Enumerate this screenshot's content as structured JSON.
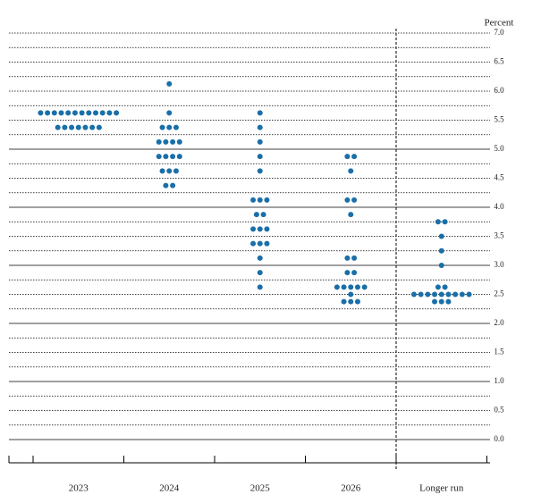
{
  "chart_data": {
    "type": "dot",
    "y_label": "Percent",
    "categories": [
      "2023",
      "2024",
      "2025",
      "2026",
      "Longer run"
    ],
    "values": [
      [
        5.625,
        5.625,
        5.625,
        5.625,
        5.625,
        5.625,
        5.625,
        5.625,
        5.625,
        5.625,
        5.625,
        5.625,
        5.375,
        5.375,
        5.375,
        5.375,
        5.375,
        5.375,
        5.375
      ],
      [
        6.125,
        5.625,
        5.375,
        5.375,
        5.375,
        5.125,
        5.125,
        5.125,
        5.125,
        4.875,
        4.875,
        4.875,
        4.875,
        4.625,
        4.625,
        4.625,
        4.375,
        4.375
      ],
      [
        5.625,
        5.375,
        5.125,
        4.875,
        4.625,
        4.125,
        4.125,
        4.125,
        3.875,
        3.875,
        3.625,
        3.625,
        3.625,
        3.375,
        3.375,
        3.375,
        3.125,
        2.875,
        2.625
      ],
      [
        4.875,
        4.875,
        4.625,
        4.125,
        4.125,
        3.875,
        3.125,
        3.125,
        2.875,
        2.875,
        2.625,
        2.625,
        2.625,
        2.625,
        2.625,
        2.5,
        2.375,
        2.375,
        2.375
      ],
      [
        3.75,
        3.75,
        3.5,
        3.25,
        3.0,
        2.625,
        2.625,
        2.5,
        2.5,
        2.5,
        2.5,
        2.5,
        2.5,
        2.5,
        2.5,
        2.5,
        2.375,
        2.375,
        2.375
      ]
    ],
    "color": "#1a6fa8",
    "ylim": [
      -0.4,
      7.0
    ],
    "yticks": [
      {
        "value": 0,
        "label": "0.0"
      },
      {
        "value": 0.5,
        "label": "0.5"
      },
      {
        "value": 1,
        "label": "1.0"
      },
      {
        "value": 1.5,
        "label": "1.5"
      },
      {
        "value": 2,
        "label": "2.0"
      },
      {
        "value": 2.5,
        "label": "2.5"
      },
      {
        "value": 3,
        "label": "3.0"
      },
      {
        "value": 3.5,
        "label": "3.5"
      },
      {
        "value": 4,
        "label": "4.0"
      },
      {
        "value": 4.5,
        "label": "4.5"
      },
      {
        "value": 5,
        "label": "5.0"
      },
      {
        "value": 5.5,
        "label": "5.5"
      },
      {
        "value": 6,
        "label": "6.0"
      },
      {
        "value": 6.5,
        "label": "6.5"
      },
      {
        "value": 7,
        "label": "7.0"
      }
    ],
    "grid": true
  }
}
